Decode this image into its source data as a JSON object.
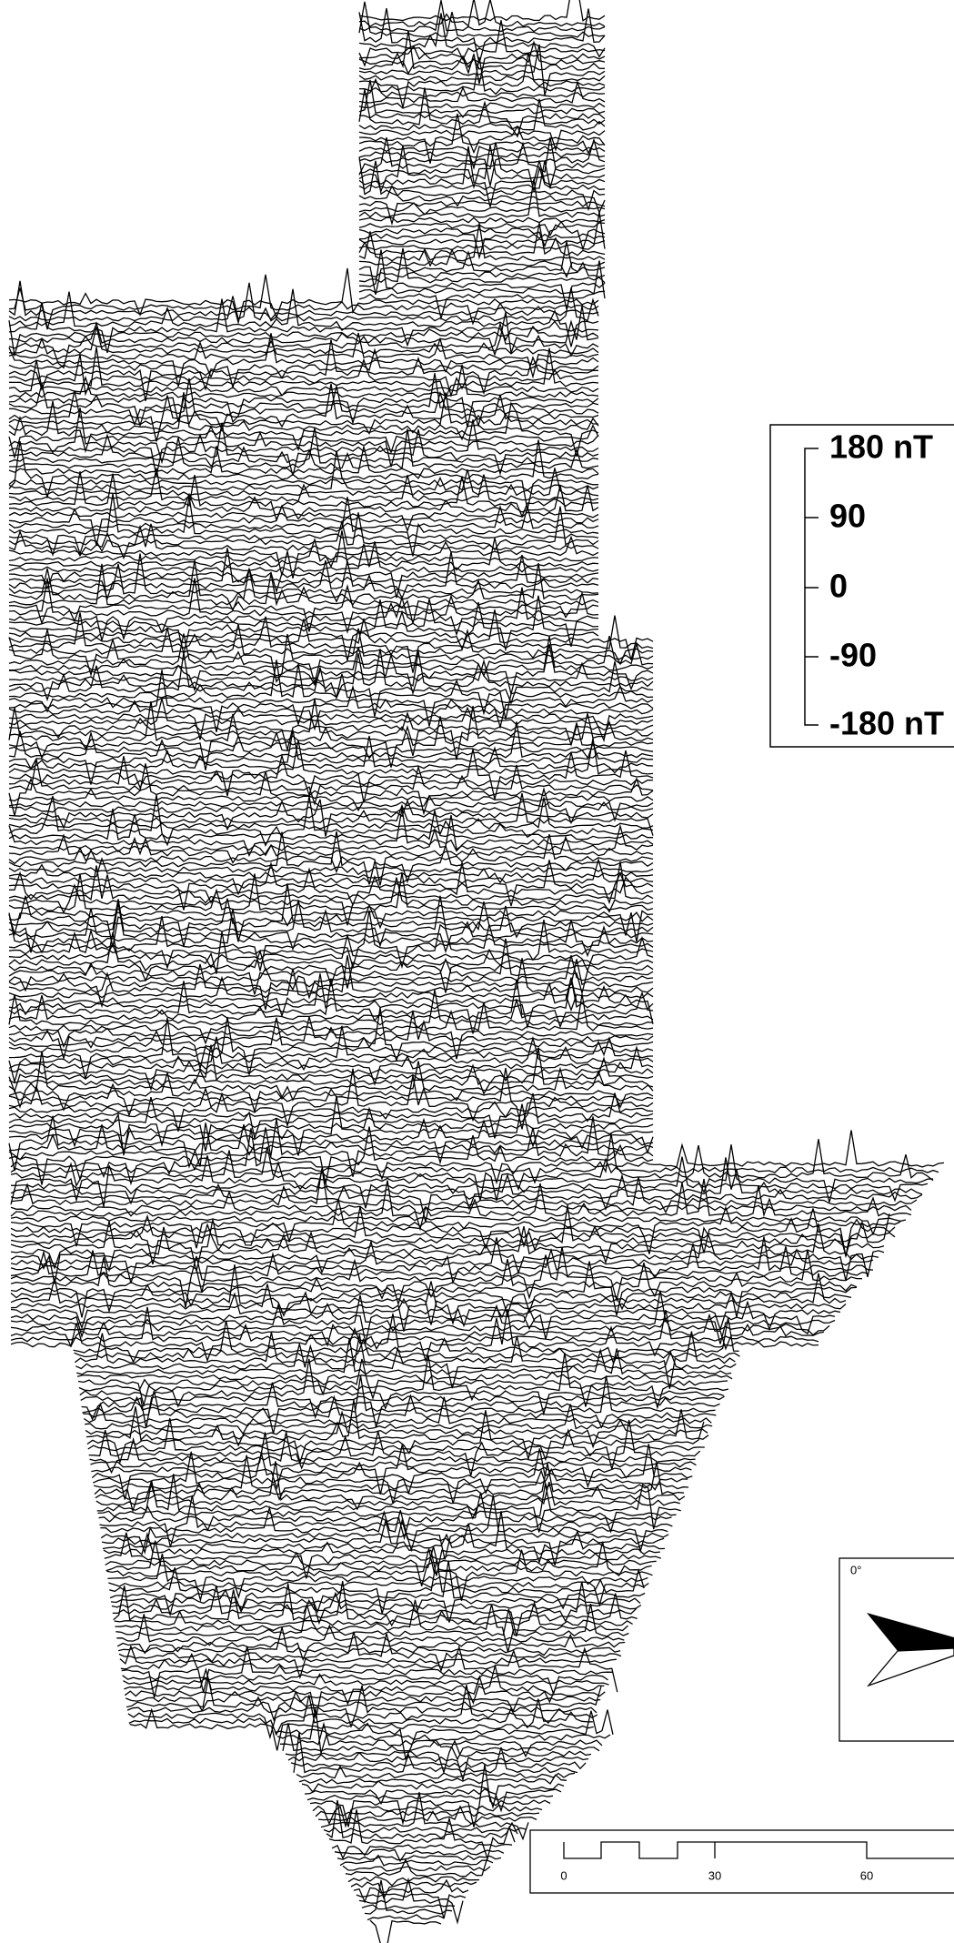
{
  "legend": {
    "ticks": [
      "180 nT",
      "90",
      "0",
      "-90",
      "-180 nT"
    ]
  },
  "north_arrow": {
    "label": "0°"
  },
  "scale_bar": {
    "ticks": [
      "0",
      "30",
      "60"
    ]
  }
}
